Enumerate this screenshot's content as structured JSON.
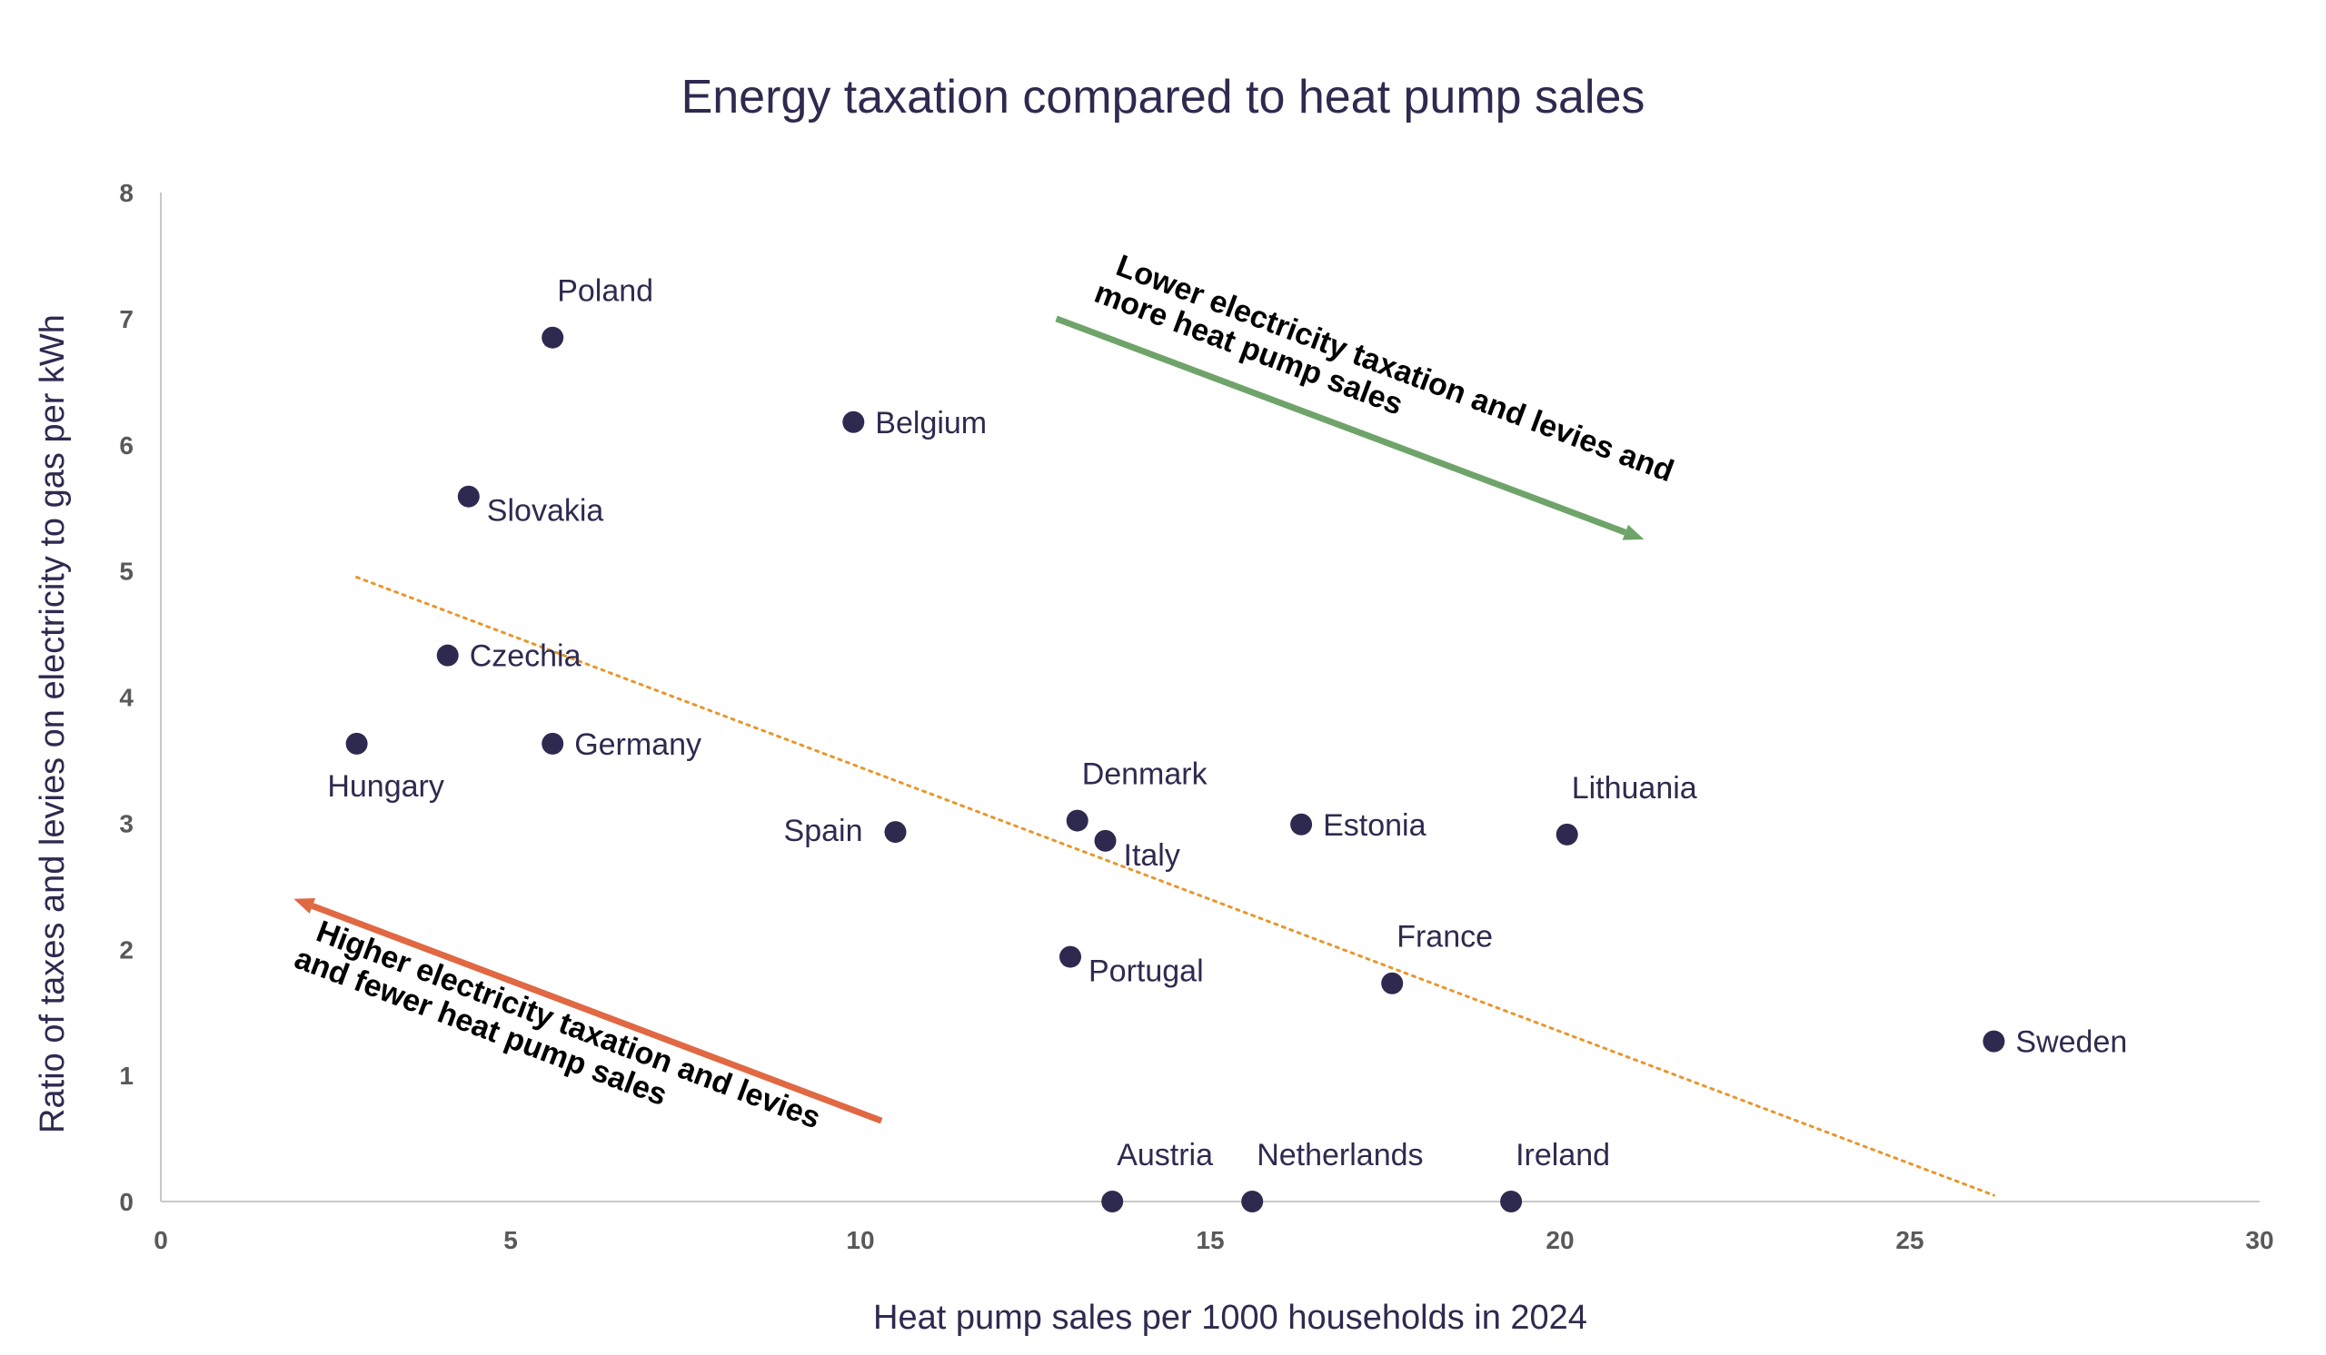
{
  "chart_data": {
    "type": "scatter",
    "title": "Energy taxation compared to heat pump sales",
    "xlabel": "Heat pump sales per 1000 households in 2024",
    "ylabel": "Ratio of taxes and levies on electricity to gas per kWh",
    "xlim": [
      0,
      30
    ],
    "ylim": [
      0,
      8
    ],
    "xticks": [
      0,
      5,
      10,
      15,
      20,
      25,
      30
    ],
    "yticks": [
      0,
      1,
      2,
      3,
      4,
      5,
      6,
      7,
      8
    ],
    "grid": false,
    "legend": "none",
    "points": [
      {
        "label": "Poland",
        "x": 5.6,
        "y": 6.85,
        "label_pos": "above-right"
      },
      {
        "label": "Belgium",
        "x": 9.9,
        "y": 6.18,
        "label_pos": "right"
      },
      {
        "label": "Slovakia",
        "x": 4.4,
        "y": 5.59,
        "label_pos": "below-right"
      },
      {
        "label": "Czechia",
        "x": 4.1,
        "y": 4.33,
        "label_pos": "right"
      },
      {
        "label": "Hungary",
        "x": 2.8,
        "y": 3.63,
        "label_pos": "below"
      },
      {
        "label": "Germany",
        "x": 5.6,
        "y": 3.63,
        "label_pos": "right"
      },
      {
        "label": "Spain",
        "x": 10.5,
        "y": 2.93,
        "label_pos": "left"
      },
      {
        "label": "Denmark",
        "x": 13.1,
        "y": 3.02,
        "label_pos": "above-right"
      },
      {
        "label": "Italy",
        "x": 13.5,
        "y": 2.86,
        "label_pos": "below-right"
      },
      {
        "label": "Estonia",
        "x": 16.3,
        "y": 2.99,
        "label_pos": "right"
      },
      {
        "label": "Lithuania",
        "x": 20.1,
        "y": 2.91,
        "label_pos": "above-right"
      },
      {
        "label": "Portugal",
        "x": 13.0,
        "y": 1.94,
        "label_pos": "below-right"
      },
      {
        "label": "France",
        "x": 17.6,
        "y": 1.73,
        "label_pos": "above-right"
      },
      {
        "label": "Sweden",
        "x": 26.2,
        "y": 1.27,
        "label_pos": "right"
      },
      {
        "label": "Austria",
        "x": 13.6,
        "y": 0.0,
        "label_pos": "above-right"
      },
      {
        "label": "Netherlands",
        "x": 15.6,
        "y": 0.0,
        "label_pos": "above-right"
      },
      {
        "label": "Ireland",
        "x": 19.3,
        "y": 0.0,
        "label_pos": "above-right"
      }
    ],
    "trendline": {
      "x1": 2.8,
      "y1": 4.95,
      "x2": 26.2,
      "y2": 0.05,
      "style": "dotted",
      "color": "#e8962c"
    },
    "annotations": [
      {
        "lines": [
          "Lower electricity taxation and levies and",
          "more heat pump sales"
        ],
        "arrow": {
          "x1": 12.8,
          "y1": 7.0,
          "x2": 21.2,
          "y2": 5.25
        },
        "color": "#6ea469"
      },
      {
        "lines": [
          "Higher electricity taxation and levies",
          "and fewer heat pump sales"
        ],
        "arrow": {
          "x1": 10.3,
          "y1": 0.64,
          "x2": 1.9,
          "y2": 2.4
        },
        "color": "#e06842"
      }
    ],
    "colors": {
      "point": "#2e2a4f",
      "text": "#2e2a4f",
      "tick": "#595959",
      "axis": "#c8c8c8",
      "annotation_text": "#000000"
    }
  }
}
